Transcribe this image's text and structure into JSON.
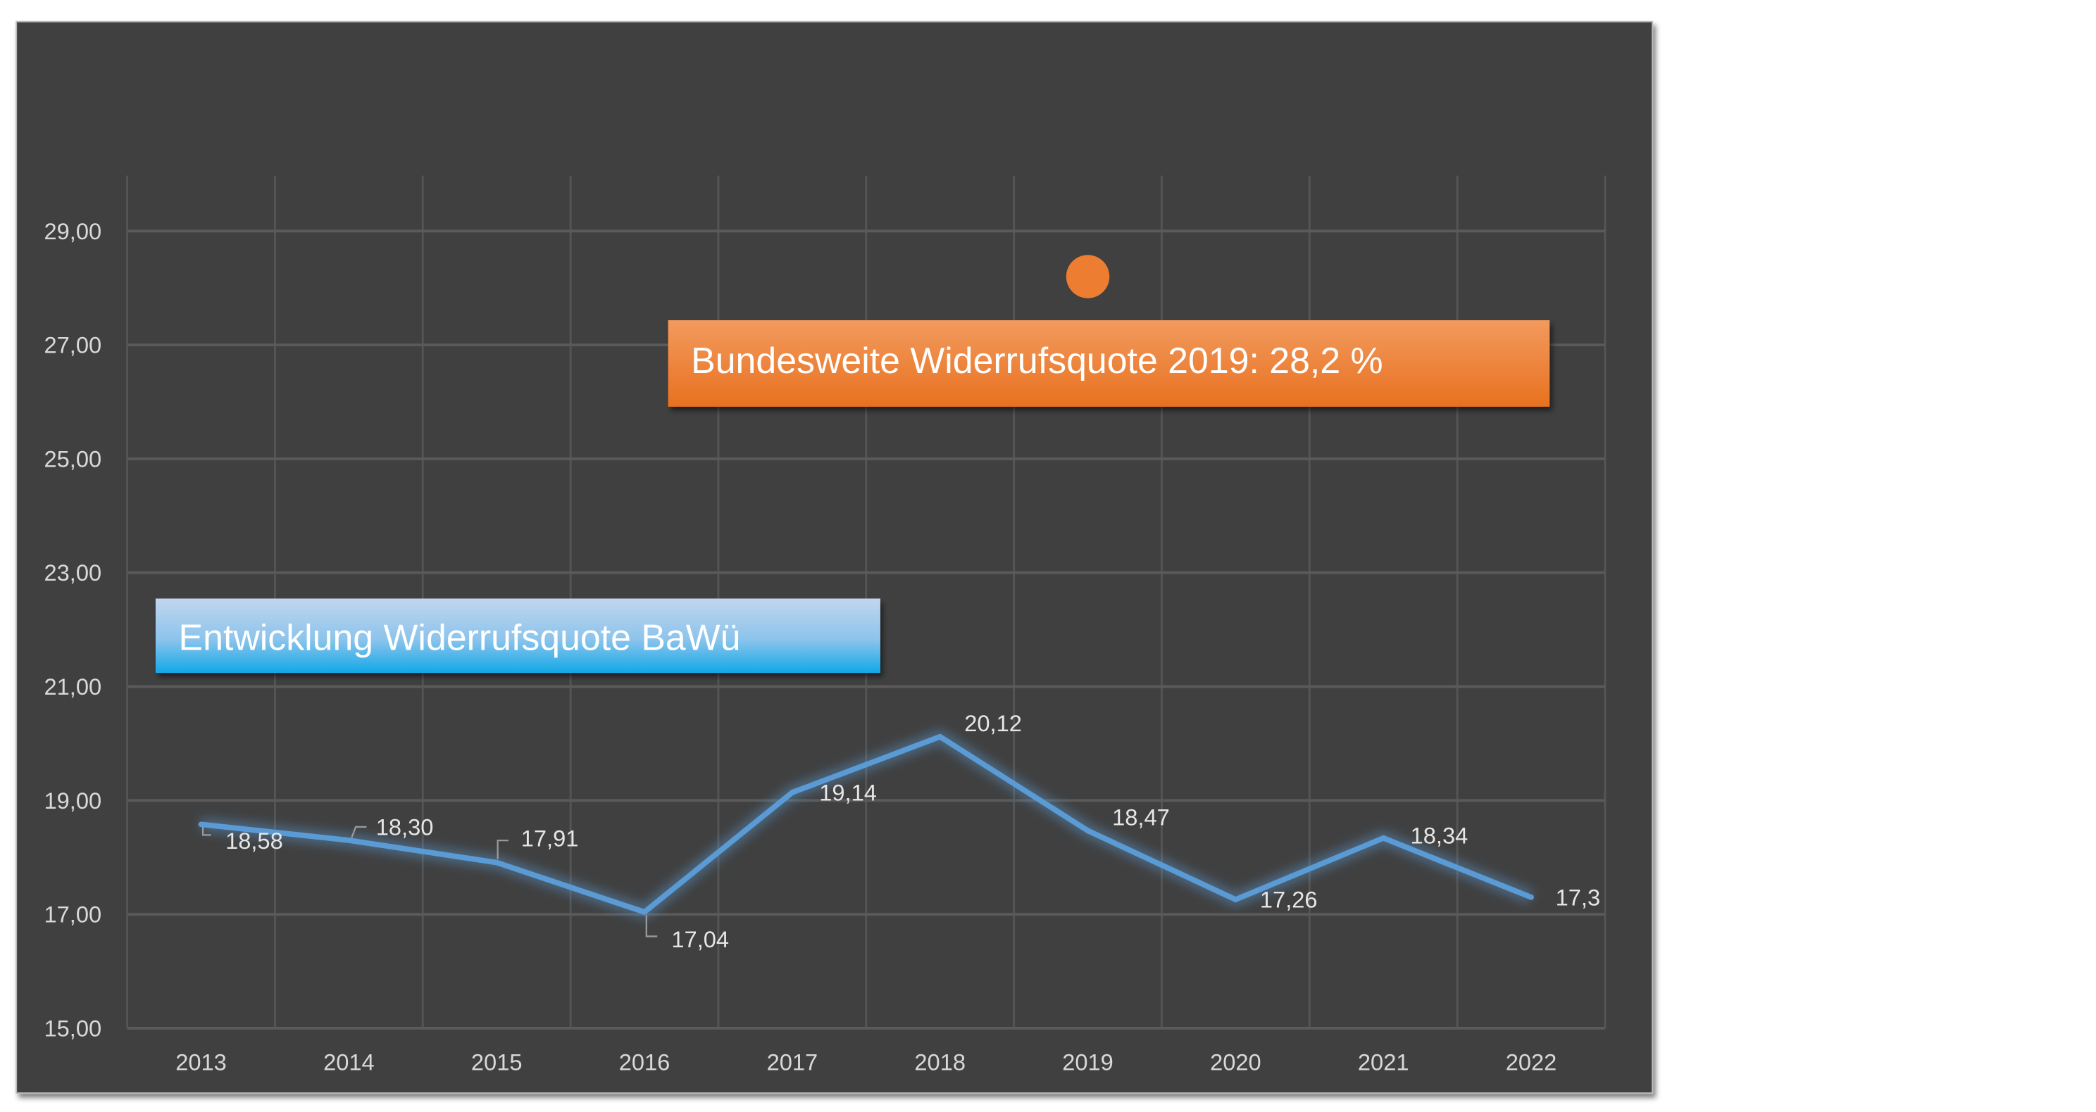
{
  "chart_data": {
    "type": "line",
    "categories": [
      "2013",
      "2014",
      "2015",
      "2016",
      "2017",
      "2018",
      "2019",
      "2020",
      "2021",
      "2022"
    ],
    "series": [
      {
        "name": "Entwicklung Widerrufsquote BaWü",
        "values": [
          18.58,
          18.3,
          17.91,
          17.04,
          19.14,
          20.12,
          18.47,
          17.26,
          18.34,
          17.3
        ],
        "color": "#5b9bd5",
        "labels": [
          "18,58",
          "18,30",
          "17,91",
          "17,04",
          "19,14",
          "20,12",
          "18,47",
          "17,26",
          "18,34",
          "17,3"
        ]
      },
      {
        "name": "Bundesweite Widerrufsquote 2019",
        "category": "2019",
        "value": 28.2,
        "color": "#ed7d31"
      }
    ],
    "ylim": [
      15,
      30
    ],
    "yticks": [
      15,
      17,
      19,
      21,
      23,
      25,
      27,
      29
    ],
    "ytick_labels": [
      "15,00",
      "17,00",
      "19,00",
      "21,00",
      "23,00",
      "25,00",
      "27,00",
      "29,00"
    ],
    "grid": true,
    "annotations": {
      "bawue_label": "Entwicklung Widerrufsquote BaWü",
      "bund_label": "Bundesweite Widerrufsquote 2019: 28,2 %"
    },
    "background": "#404040"
  }
}
